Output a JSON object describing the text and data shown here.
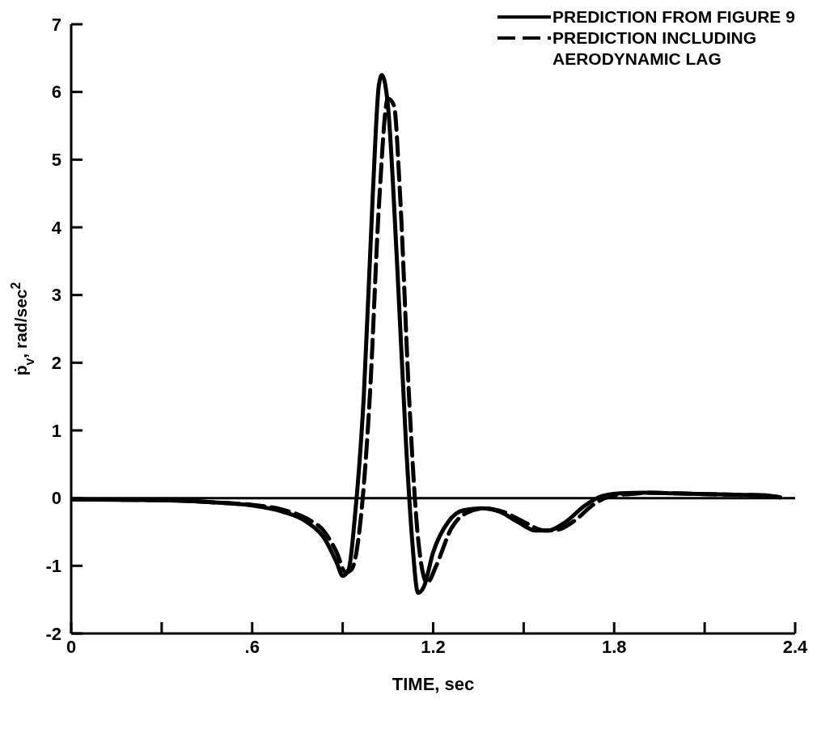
{
  "chart_data": {
    "type": "line",
    "xlabel": "TIME, sec",
    "ylabel": "ṗ$_{v}$, rad/sec$^{2}$",
    "xlim": [
      0,
      2.4
    ],
    "ylim": [
      -2,
      7
    ],
    "xticks": [
      0,
      {
        "value": 0.3,
        "label": null
      },
      {
        "value": 0.6,
        "label": ".6"
      },
      {
        "value": 0.9,
        "label": null
      },
      1.2,
      {
        "value": 1.5,
        "label": null
      },
      1.8,
      {
        "value": 2.1,
        "label": null
      },
      2.4
    ],
    "yticks": [
      -2,
      -1,
      0,
      1,
      2,
      3,
      4,
      5,
      6,
      7
    ],
    "grid": false,
    "legend": "top right",
    "marker": "none",
    "ref_lines": [
      {
        "axis": "y",
        "value": 0,
        "color": "#000000",
        "line_style": "solid"
      }
    ],
    "series": [
      {
        "name": "PREDICTION FROM FIGURE 9",
        "color": "#000000",
        "line_style": "solid",
        "x": [
          0,
          0.3,
          0.5,
          0.6,
          0.7,
          0.78,
          0.84,
          0.88,
          0.9,
          0.92,
          0.94,
          0.97,
          1.0,
          1.02,
          1.03,
          1.05,
          1.08,
          1.11,
          1.13,
          1.15,
          1.17,
          1.2,
          1.25,
          1.3,
          1.36,
          1.42,
          1.48,
          1.54,
          1.58,
          1.64,
          1.7,
          1.76,
          1.82,
          1.9,
          2.0,
          2.1,
          2.2,
          2.3,
          2.35
        ],
        "values": [
          -0.02,
          -0.03,
          -0.07,
          -0.11,
          -0.2,
          -0.35,
          -0.6,
          -0.95,
          -1.15,
          -1.05,
          -0.3,
          1.5,
          4.5,
          6.1,
          6.25,
          5.8,
          3.5,
          0.8,
          -0.6,
          -1.4,
          -1.3,
          -0.8,
          -0.35,
          -0.18,
          -0.15,
          -0.2,
          -0.35,
          -0.48,
          -0.48,
          -0.35,
          -0.12,
          0.03,
          0.07,
          0.08,
          0.07,
          0.06,
          0.05,
          0.04,
          0.01
        ]
      },
      {
        "name": "PREDICTION INCLUDING AERODYNAMIC LAG",
        "color": "#000000",
        "line_style": "dashed",
        "x": [
          0,
          0.3,
          0.5,
          0.6,
          0.7,
          0.78,
          0.84,
          0.88,
          0.91,
          0.93,
          0.96,
          0.99,
          1.02,
          1.05,
          1.07,
          1.09,
          1.12,
          1.15,
          1.18,
          1.21,
          1.26,
          1.31,
          1.37,
          1.43,
          1.5,
          1.57,
          1.61,
          1.67,
          1.73,
          1.79,
          1.85,
          1.92,
          2.0,
          2.1,
          2.2,
          2.3,
          2.35
        ],
        "values": [
          -0.02,
          -0.03,
          -0.07,
          -0.1,
          -0.17,
          -0.3,
          -0.5,
          -0.8,
          -1.1,
          -1.05,
          -0.3,
          1.5,
          4.3,
          5.9,
          5.8,
          4.5,
          1.5,
          -0.6,
          -1.25,
          -1.0,
          -0.45,
          -0.22,
          -0.15,
          -0.2,
          -0.35,
          -0.48,
          -0.47,
          -0.33,
          -0.1,
          0.03,
          0.06,
          0.08,
          0.07,
          0.06,
          0.05,
          0.04,
          0.01
        ]
      }
    ]
  }
}
